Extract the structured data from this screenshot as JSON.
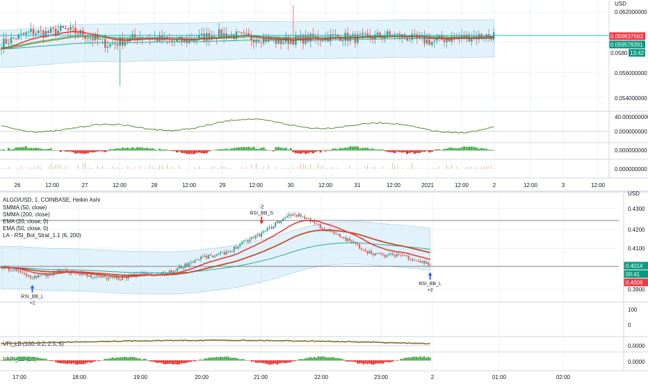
{
  "chart_data": [
    {
      "type": "candlestick",
      "title": "",
      "currency": "USD",
      "x_axis": {
        "ticks": [
          "26",
          "12:00",
          "27",
          "12:00",
          "28",
          "12:00",
          "29",
          "12:00",
          "30",
          "12:00",
          "31",
          "12:00",
          "2021",
          "12:00",
          "2",
          "12:00",
          "3",
          "12:00"
        ]
      },
      "price_axis": {
        "ticks": [
          "0.062000000",
          "0.058",
          "0.056000000",
          "0.054000000"
        ],
        "ylim": [
          0.0528,
          0.0628
        ]
      },
      "price_path_approx": [
        0.0588,
        0.0594,
        0.0599,
        0.0598,
        0.0601,
        0.0598,
        0.0593,
        0.0587,
        0.0591,
        0.0595,
        0.0593,
        0.059,
        0.0591,
        0.0594,
        0.0597,
        0.0596,
        0.0594,
        0.0593,
        0.059,
        0.0592,
        0.0593,
        0.0594,
        0.0595,
        0.0593,
        0.0594,
        0.0596,
        0.0595,
        0.0592,
        0.059,
        0.0593,
        0.0594,
        0.0595,
        0.0596
      ],
      "price_labels": [
        {
          "value": "0.059637563",
          "color": "#f23645"
        },
        {
          "value": "0.059578391",
          "color": "#089981"
        },
        {
          "value": "13:42",
          "color": "#089981"
        },
        {
          "value": "0.0580",
          "color": "#ffffff"
        }
      ],
      "sub_panes": [
        {
          "ticks": [
            "40.000000000",
            "0.000000000"
          ]
        },
        {
          "ticks": [
            "0.000000000"
          ]
        },
        {
          "ticks": [
            "0.000000000"
          ]
        }
      ]
    },
    {
      "type": "candlestick",
      "title": "ALGO/USD, 1, COINBASE, Heikin Ashi",
      "currency": "USD",
      "x_axis": {
        "ticks": [
          "17:00",
          "18:00",
          "19:00",
          "20:00",
          "21:00",
          "22:00",
          "23:00",
          "2",
          "01:00",
          "02:00"
        ]
      },
      "price_axis": {
        "ticks": [
          "0.4300",
          "0.4200",
          "0.4100",
          "0.3900"
        ],
        "ylim": [
          0.3825,
          0.4355
        ]
      },
      "price_path_approx": [
        0.4,
        0.3975,
        0.3945,
        0.3955,
        0.398,
        0.3965,
        0.395,
        0.3935,
        0.394,
        0.396,
        0.3955,
        0.397,
        0.401,
        0.405,
        0.406,
        0.409,
        0.414,
        0.418,
        0.424,
        0.429,
        0.4265,
        0.421,
        0.417,
        0.413,
        0.408,
        0.406,
        0.407,
        0.404,
        0.4014
      ],
      "legend": [
        "SMMA (50, close)",
        "SMMA (200, close)",
        "EMA (20, close, 0)",
        "EMA (50, close, 0)",
        "LA - RSI_Bol_Strat_1.1 (6, 200)"
      ],
      "annotations": [
        {
          "label": "RSI_BB_L",
          "qty": "+2",
          "direction": "up",
          "at_index": 2
        },
        {
          "label": "RSI_BB_S",
          "qty": "-2",
          "direction": "down",
          "at_index": 17
        },
        {
          "label": "RSI_BB_L",
          "qty": "+2",
          "direction": "up",
          "at_index": 28
        }
      ],
      "price_labels": [
        {
          "value": "0.4014",
          "color": "#089981"
        },
        {
          "value": "00:41",
          "color": "#089981"
        },
        {
          "value": "0.4006",
          "color": "#f23645"
        }
      ],
      "sub_panes": [
        {
          "ticks": [
            "100",
            "0"
          ]
        },
        {
          "name": "VFI_LB (130, 0.2, 2.5, 5)",
          "ticks": [
            "0.0000"
          ]
        },
        {
          "name": "VAPI_LB (10)",
          "ticks": [
            "0.0000"
          ]
        }
      ]
    }
  ],
  "colors": {
    "up": "#26a69a",
    "down": "#ef5350",
    "band": "#bfe3f5",
    "ema_red": "#e53935",
    "ema_green": "#43a047",
    "smma_teal": "#26a69a",
    "smma_olive": "#827717",
    "cyan_line": "#00bcd4",
    "oscillator": "#558b2f",
    "hist_green": "#4caf50",
    "hist_red": "#e53935"
  }
}
